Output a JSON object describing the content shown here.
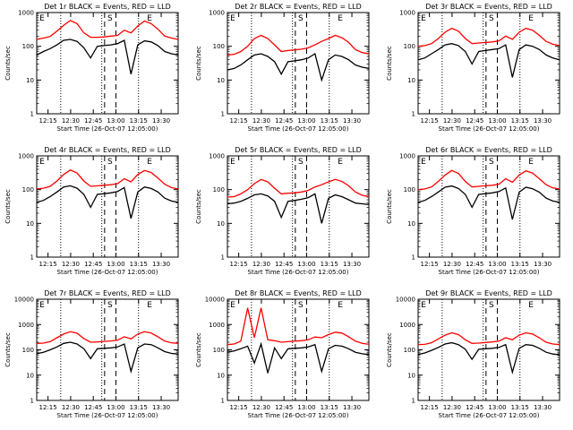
{
  "chart_data": [
    {
      "type": "line",
      "title": "Det 1r BLACK = Events, RED = LLD",
      "xlabel": "Start Time (26-Oct-07 12:05:00)",
      "ylabel": "Counts/sec",
      "ylim": [
        1,
        1000
      ],
      "y_scale": "log",
      "y_ticks": [
        "1",
        "10",
        "100",
        "1000"
      ],
      "x_ticks": [
        "12:15",
        "12:30",
        "12:45",
        "13:00",
        "13:15",
        "13:30"
      ],
      "markers": [
        "E",
        "S",
        "E"
      ],
      "series": [
        {
          "color": "#ff0000",
          "values": [
            160,
            175,
            195,
            280,
            420,
            580,
            470,
            250,
            185,
            185,
            190,
            200,
            210,
            300,
            250,
            400,
            560,
            470,
            320,
            200,
            175,
            160
          ]
        },
        {
          "color": "#000000",
          "values": [
            55,
            70,
            85,
            110,
            150,
            160,
            140,
            90,
            45,
            100,
            105,
            110,
            120,
            150,
            15,
            110,
            145,
            135,
            105,
            70,
            60,
            55
          ]
        }
      ]
    },
    {
      "type": "line",
      "title": "Det 2r BLACK = Events, RED = LLD",
      "xlabel": "Start Time (26-Oct-07 12:05:00)",
      "ylabel": "Counts/sec",
      "ylim": [
        1,
        1000
      ],
      "y_scale": "log",
      "y_ticks": [
        "1",
        "10",
        "100",
        "1000"
      ],
      "x_ticks": [
        "12:15",
        "12:30",
        "12:45",
        "13:00",
        "13:15",
        "13:30"
      ],
      "markers": [
        "E",
        "S",
        "E"
      ],
      "series": [
        {
          "color": "#ff0000",
          "values": [
            55,
            58,
            70,
            100,
            170,
            210,
            170,
            110,
            70,
            75,
            78,
            82,
            90,
            110,
            140,
            170,
            210,
            180,
            130,
            80,
            65,
            60
          ]
        },
        {
          "color": "#000000",
          "values": [
            20,
            22,
            28,
            40,
            55,
            60,
            50,
            35,
            15,
            35,
            37,
            40,
            45,
            60,
            10,
            40,
            55,
            50,
            40,
            28,
            24,
            22
          ]
        }
      ]
    },
    {
      "type": "line",
      "title": "Det 3r BLACK = Events, RED = LLD",
      "xlabel": "Start Time (26-Oct-07 12:05:00)",
      "ylabel": "Counts/sec",
      "ylim": [
        1,
        1000
      ],
      "y_scale": "log",
      "y_ticks": [
        "1",
        "10",
        "100",
        "1000"
      ],
      "x_ticks": [
        "12:15",
        "12:30",
        "12:45",
        "13:00",
        "13:15",
        "13:30"
      ],
      "markers": [
        "E",
        "S",
        "E"
      ],
      "series": [
        {
          "color": "#ff0000",
          "values": [
            100,
            105,
            120,
            170,
            260,
            340,
            280,
            170,
            120,
            125,
            130,
            135,
            145,
            200,
            160,
            260,
            340,
            300,
            210,
            140,
            115,
            105
          ]
        },
        {
          "color": "#000000",
          "values": [
            40,
            45,
            60,
            80,
            110,
            120,
            105,
            70,
            30,
            70,
            75,
            80,
            85,
            110,
            12,
            80,
            110,
            100,
            80,
            55,
            45,
            40
          ]
        }
      ]
    },
    {
      "type": "line",
      "title": "Det 4r BLACK = Events, RED = LLD",
      "xlabel": "Start Time (26-Oct-07 12:05:00)",
      "ylabel": "Counts/sec",
      "ylim": [
        1,
        1000
      ],
      "y_scale": "log",
      "y_ticks": [
        "1",
        "10",
        "100",
        "1000"
      ],
      "x_ticks": [
        "12:15",
        "12:30",
        "12:45",
        "13:00",
        "13:15",
        "13:30"
      ],
      "markers": [
        "E",
        "S",
        "E"
      ],
      "series": [
        {
          "color": "#ff0000",
          "values": [
            105,
            110,
            125,
            180,
            280,
            380,
            310,
            180,
            125,
            130,
            135,
            140,
            150,
            210,
            170,
            280,
            370,
            320,
            220,
            145,
            115,
            105
          ]
        },
        {
          "color": "#000000",
          "values": [
            42,
            48,
            62,
            85,
            120,
            130,
            110,
            72,
            30,
            72,
            76,
            80,
            88,
            115,
            14,
            85,
            120,
            108,
            85,
            56,
            46,
            42
          ]
        }
      ]
    },
    {
      "type": "line",
      "title": "Det 5r BLACK = Events, RED = LLD",
      "xlabel": "Start Time (26-Oct-07 12:05:00)",
      "ylabel": "Counts/sec",
      "ylim": [
        1,
        1000
      ],
      "y_scale": "log",
      "y_ticks": [
        "1",
        "10",
        "100",
        "1000"
      ],
      "x_ticks": [
        "12:15",
        "12:30",
        "12:45",
        "13:00",
        "13:15",
        "13:30"
      ],
      "markers": [
        "E",
        "S",
        "E"
      ],
      "series": [
        {
          "color": "#ff0000",
          "values": [
            60,
            62,
            75,
            100,
            150,
            200,
            170,
            110,
            75,
            78,
            80,
            85,
            95,
            120,
            140,
            170,
            200,
            175,
            130,
            85,
            68,
            62
          ]
        },
        {
          "color": "#000000",
          "values": [
            38,
            40,
            45,
            55,
            70,
            75,
            65,
            45,
            15,
            45,
            48,
            52,
            58,
            75,
            10,
            55,
            70,
            62,
            50,
            40,
            38,
            36
          ]
        }
      ]
    },
    {
      "type": "line",
      "title": "Det 6r BLACK = Events, RED = LLD",
      "xlabel": "Start Time (26-Oct-07 12:05:00)",
      "ylabel": "Counts/sec",
      "ylim": [
        1,
        1000
      ],
      "y_scale": "log",
      "y_ticks": [
        "1",
        "10",
        "100",
        "1000"
      ],
      "x_ticks": [
        "12:15",
        "12:30",
        "12:45",
        "13:00",
        "13:15",
        "13:30"
      ],
      "markers": [
        "E",
        "S",
        "E"
      ],
      "series": [
        {
          "color": "#ff0000",
          "values": [
            100,
            105,
            120,
            175,
            270,
            370,
            300,
            175,
            120,
            125,
            130,
            135,
            145,
            210,
            165,
            270,
            360,
            310,
            210,
            140,
            112,
            104
          ]
        },
        {
          "color": "#000000",
          "values": [
            42,
            48,
            62,
            85,
            118,
            128,
            108,
            72,
            30,
            72,
            76,
            80,
            88,
            112,
            13,
            84,
            118,
            106,
            84,
            56,
            46,
            42
          ]
        }
      ]
    },
    {
      "type": "line",
      "title": "Det 7r BLACK = Events, RED = LLD",
      "xlabel": "Start Time (26-Oct-07 12:05:00)",
      "ylabel": "Counts/sec",
      "ylim": [
        1,
        10000
      ],
      "y_scale": "log",
      "y_ticks": [
        "1",
        "10",
        "100",
        "1000",
        "10000"
      ],
      "x_ticks": [
        "12:15",
        "12:30",
        "12:45",
        "13:00",
        "13:15",
        "13:30"
      ],
      "markers": [
        "E",
        "S",
        "E"
      ],
      "series": [
        {
          "color": "#ff0000",
          "values": [
            180,
            185,
            210,
            300,
            420,
            520,
            450,
            280,
            200,
            205,
            215,
            225,
            240,
            330,
            270,
            420,
            520,
            460,
            330,
            220,
            190,
            180
          ]
        },
        {
          "color": "#000000",
          "values": [
            70,
            80,
            100,
            130,
            180,
            200,
            170,
            110,
            45,
            110,
            115,
            120,
            130,
            170,
            14,
            120,
            170,
            160,
            120,
            85,
            72,
            68
          ]
        }
      ]
    },
    {
      "type": "line",
      "title": "Det 8r BLACK = Events, RED = LLD",
      "xlabel": "Start Time (26-Oct-07 12:05:00)",
      "ylabel": "Counts/sec",
      "ylim": [
        1,
        10000
      ],
      "y_scale": "log",
      "y_ticks": [
        "1",
        "10",
        "100",
        "1000",
        "10000"
      ],
      "x_ticks": [
        "12:15",
        "12:30",
        "12:45",
        "13:00",
        "13:15",
        "13:30"
      ],
      "markers": [
        "E",
        "S",
        "E"
      ],
      "series": [
        {
          "color": "#ff0000",
          "values": [
            160,
            170,
            220,
            4500,
            300,
            4500,
            250,
            230,
            200,
            210,
            220,
            230,
            250,
            320,
            300,
            400,
            500,
            460,
            330,
            220,
            180,
            165
          ]
        },
        {
          "color": "#000000",
          "values": [
            80,
            90,
            110,
            140,
            30,
            170,
            12,
            120,
            45,
            110,
            115,
            120,
            130,
            160,
            14,
            110,
            150,
            140,
            110,
            80,
            70,
            65
          ]
        }
      ]
    },
    {
      "type": "line",
      "title": "Det 9r BLACK = Events, RED = LLD",
      "xlabel": "Start Time (26-Oct-07 12:05:00)",
      "ylabel": "Counts/sec",
      "ylim": [
        1,
        10000
      ],
      "y_scale": "log",
      "y_ticks": [
        "1",
        "10",
        "100",
        "1000",
        "10000"
      ],
      "x_ticks": [
        "12:15",
        "12:30",
        "12:45",
        "13:00",
        "13:15",
        "13:30"
      ],
      "markers": [
        "E",
        "S",
        "E"
      ],
      "series": [
        {
          "color": "#ff0000",
          "values": [
            160,
            165,
            190,
            270,
            380,
            470,
            400,
            250,
            180,
            185,
            195,
            205,
            220,
            300,
            250,
            380,
            470,
            420,
            300,
            200,
            170,
            160
          ]
        },
        {
          "color": "#000000",
          "values": [
            65,
            75,
            95,
            125,
            170,
            190,
            160,
            105,
            42,
            105,
            110,
            115,
            125,
            160,
            13,
            115,
            160,
            150,
            115,
            80,
            68,
            64
          ]
        }
      ]
    }
  ]
}
